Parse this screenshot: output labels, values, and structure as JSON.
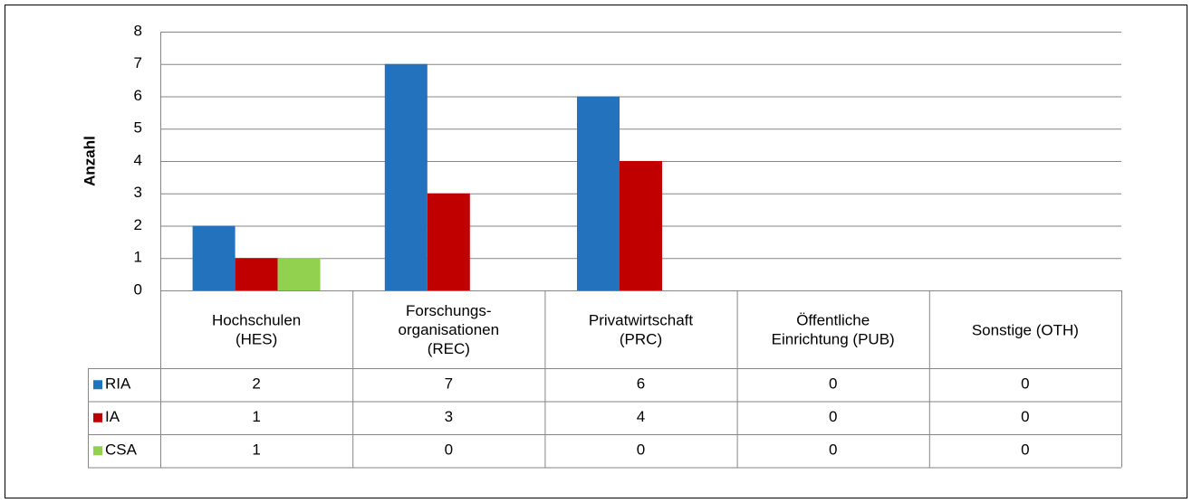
{
  "chart_data": {
    "type": "bar",
    "y_label": "Anzahl",
    "categories": [
      "Hochschulen\n(HES)",
      "Forschungs-\norganisationen\n(REC)",
      "Privatwirtschaft\n(PRC)",
      "Öffentliche\nEinrichtung (PUB)",
      "Sonstige (OTH)"
    ],
    "series": [
      {
        "name": "RIA",
        "color": "#2272be",
        "values": [
          2,
          7,
          6,
          0,
          0
        ]
      },
      {
        "name": "IA",
        "color": "#c00000",
        "values": [
          1,
          3,
          4,
          0,
          0
        ]
      },
      {
        "name": "CSA",
        "color": "#92d050",
        "values": [
          1,
          0,
          0,
          0,
          0
        ]
      }
    ],
    "ylim": [
      0,
      8
    ],
    "yticks": [
      0,
      1,
      2,
      3,
      4,
      5,
      6,
      7,
      8
    ],
    "grid": true,
    "data_table": true
  }
}
